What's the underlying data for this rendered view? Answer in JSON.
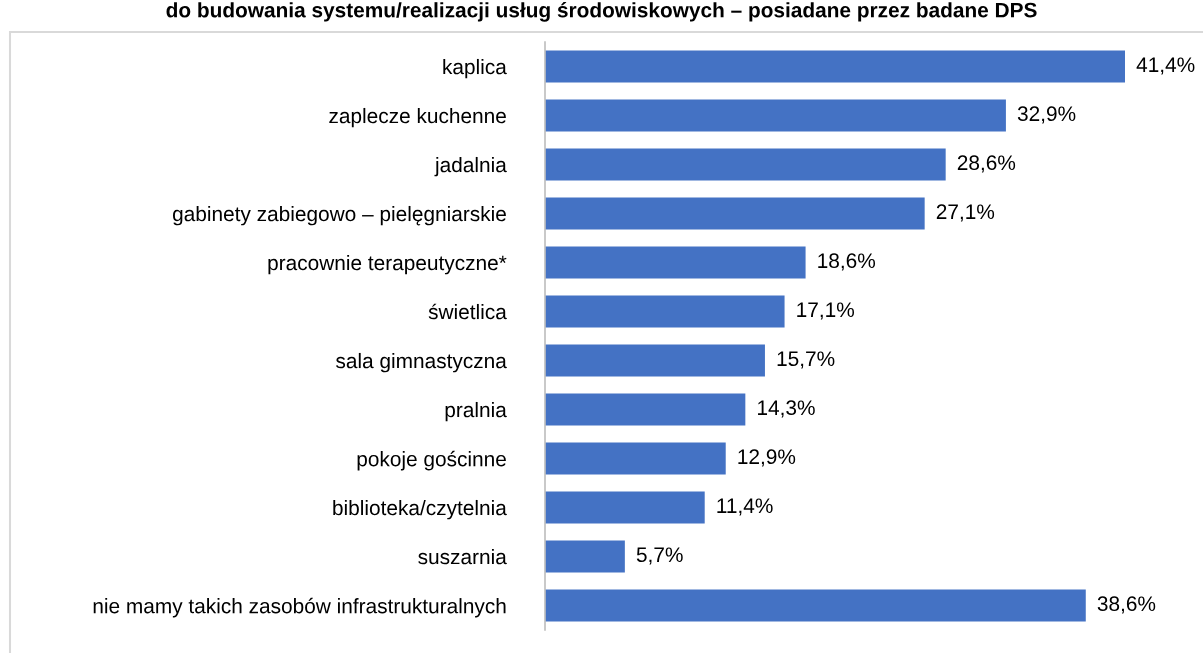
{
  "chart_data": {
    "type": "bar",
    "orientation": "horizontal",
    "title": "do budowania systemu/realizacji usług środowiskowych – posiadane przez badane DPS",
    "categories": [
      "kaplica",
      "zaplecze kuchenne",
      "jadalnia",
      "gabinety zabiegowo – pielęgniarskie",
      "pracownie terapeutyczne*",
      "świetlica",
      "sala gimnastyczna",
      "pralnia",
      "pokoje gościnne",
      "biblioteka/czytelnia",
      "suszarnia",
      "nie mamy takich zasobów infrastrukturalnych"
    ],
    "values": [
      41.4,
      32.9,
      28.6,
      27.1,
      18.6,
      17.1,
      15.7,
      14.3,
      12.9,
      11.4,
      5.7,
      38.6
    ],
    "value_labels": [
      "41,4%",
      "32,9%",
      "28,6%",
      "27,1%",
      "18,6%",
      "17,1%",
      "15,7%",
      "14,3%",
      "12,9%",
      "11,4%",
      "5,7%",
      "38,6%"
    ],
    "color": "#4472c4",
    "grid": false,
    "legend": false,
    "tick_labels": "y"
  }
}
